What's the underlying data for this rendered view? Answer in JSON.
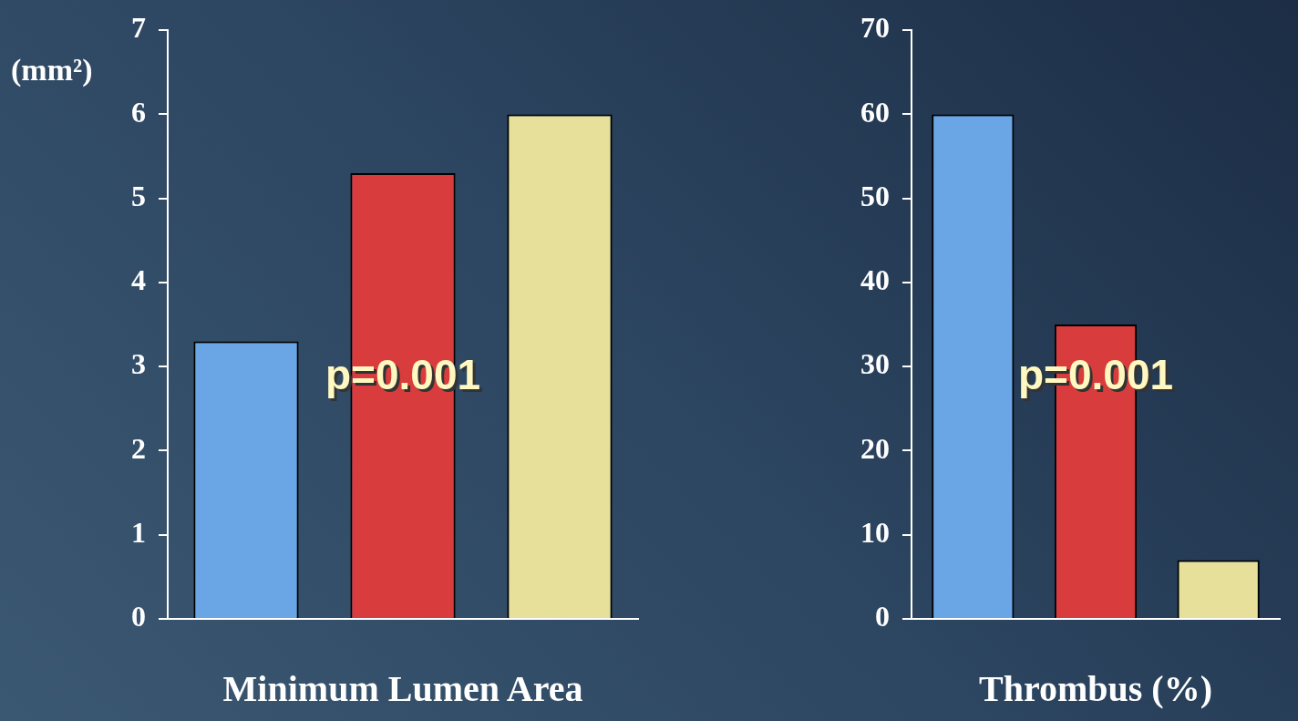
{
  "chart_data": [
    {
      "type": "bar",
      "xlabel": "Minimum Lumen Area",
      "ylabel": "(mm²)",
      "categories": [
        null,
        null,
        null
      ],
      "values": [
        3.3,
        5.3,
        6.0
      ],
      "colors": [
        "#6aa6e6",
        "#d83c3c",
        "#e6e09a"
      ],
      "ylim": [
        0,
        7
      ],
      "yticks": [
        0,
        1,
        2,
        3,
        4,
        5,
        6,
        7
      ],
      "annotations": [
        "p=0.001"
      ]
    },
    {
      "type": "bar",
      "xlabel": "Thrombus (%)",
      "categories": [
        null,
        null,
        null
      ],
      "values": [
        60,
        35,
        7
      ],
      "colors": [
        "#6aa6e6",
        "#d83c3c",
        "#e6e09a"
      ],
      "ylim": [
        0,
        70
      ],
      "yticks": [
        0,
        10,
        20,
        30,
        40,
        50,
        60,
        70
      ],
      "annotations": [
        "p=0.001"
      ]
    }
  ]
}
